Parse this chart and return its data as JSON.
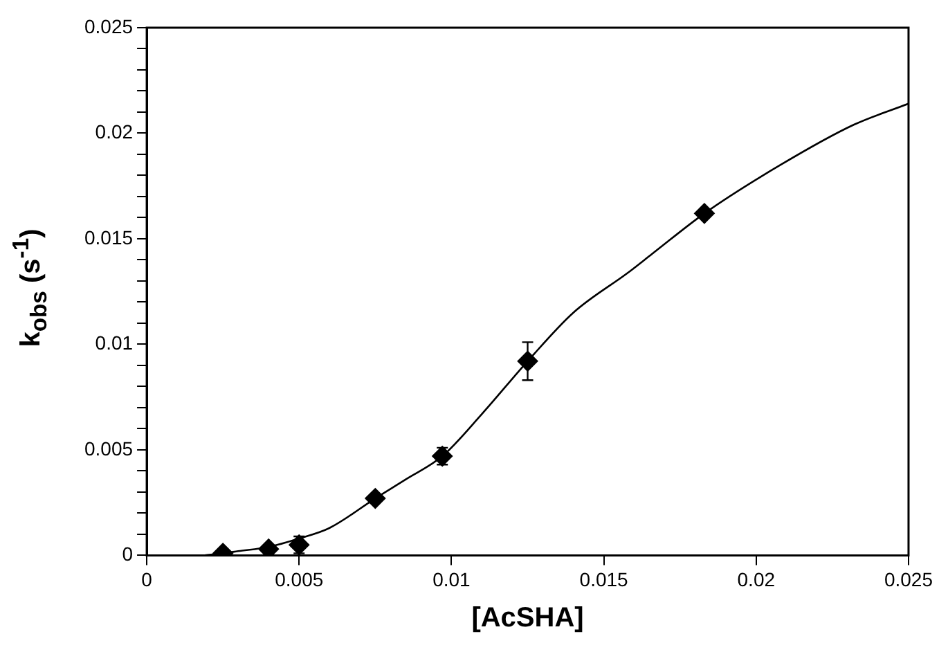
{
  "chart_data": {
    "type": "scatter",
    "xlabel": "[AcSHA]",
    "ylabel": "k$_{obs}$ (s$^{-1}$)",
    "series": [
      {
        "type": "scatter",
        "color": "#000000",
        "x": [
          0.0025,
          0.004,
          0.005,
          0.0075,
          0.0097,
          0.0125,
          0.0183
        ],
        "values": [
          0.0001,
          0.0003,
          0.0005,
          0.0027,
          0.0047,
          0.0092,
          0.0162
        ],
        "errors": [
          null,
          null,
          0.0004,
          null,
          0.0004,
          0.0009,
          null
        ],
        "marker": "diamond"
      },
      {
        "type": "line",
        "color": "#000000",
        "marker": "none",
        "line_style": "solid",
        "x": [
          0.0019,
          0.0025,
          0.003,
          0.004,
          0.005,
          0.006,
          0.0075,
          0.0085,
          0.0097,
          0.011,
          0.0125,
          0.014,
          0.0158,
          0.0166,
          0.0183,
          0.0208,
          0.0232,
          0.025
        ],
        "values": [
          0,
          0.0001,
          0.0002,
          0.0004,
          0.0008,
          0.0013,
          0.0027,
          0.0036,
          0.0047,
          0.0067,
          0.0092,
          0.0115,
          0.0134,
          0.0143,
          0.0162,
          0.0185,
          0.0204,
          0.0214
        ]
      }
    ],
    "xlim": [
      0,
      0.025
    ],
    "xticks": [
      0,
      0.005,
      0.01,
      0.015,
      0.02,
      0.025
    ],
    "ylim": [
      0,
      0.025
    ],
    "yticks": [
      0,
      {
        "value": 0.001,
        "label": null
      },
      {
        "value": 0.002,
        "label": null
      },
      {
        "value": 0.003,
        "label": null
      },
      {
        "value": 0.004,
        "label": null
      },
      0.005,
      {
        "value": 0.006,
        "label": null
      },
      {
        "value": 0.007,
        "label": null
      },
      {
        "value": 0.008,
        "label": null
      },
      {
        "value": 0.009,
        "label": null
      },
      0.01,
      {
        "value": 0.011,
        "label": null
      },
      {
        "value": 0.012,
        "label": null
      },
      {
        "value": 0.013,
        "label": null
      },
      {
        "value": 0.014,
        "label": null
      },
      0.015,
      {
        "value": 0.016,
        "label": null
      },
      {
        "value": 0.017,
        "label": null
      },
      {
        "value": 0.018,
        "label": null
      },
      {
        "value": 0.019,
        "label": null
      },
      0.02,
      {
        "value": 0.021,
        "label": null
      },
      {
        "value": 0.022,
        "label": null
      },
      {
        "value": 0.023,
        "label": null
      },
      {
        "value": 0.024,
        "label": null
      },
      0.025
    ],
    "grid": false,
    "legend": false
  }
}
